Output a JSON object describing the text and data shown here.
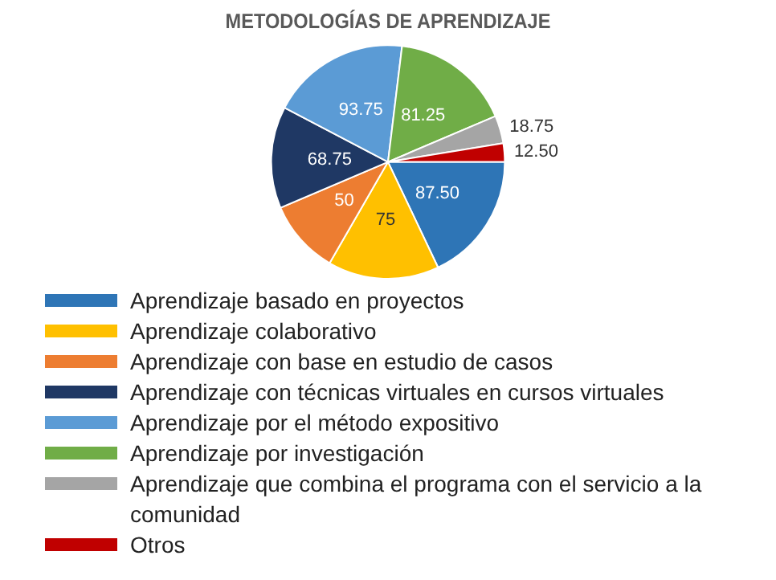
{
  "chart_data": {
    "type": "pie",
    "title": "METODOLOGÍAS DE APRENDIZAJE",
    "categories": [
      "Aprendizaje basado en proyectos",
      "Aprendizaje colaborativo",
      "Aprendizaje con base en estudio de casos",
      "Aprendizaje con técnicas virtuales en cursos virtuales",
      "Aprendizaje por el método expositivo",
      "Aprendizaje por investigación",
      "Aprendizaje que combina el programa con el servicio a la comunidad",
      "Otros"
    ],
    "values": [
      87.5,
      75,
      50,
      68.75,
      93.75,
      81.25,
      18.75,
      12.5
    ],
    "value_labels": [
      "87.50",
      "75",
      "50",
      "68.75",
      "93.75",
      "81.25",
      "18.75",
      "12.50"
    ],
    "colors": [
      "#2e75b6",
      "#ffc000",
      "#ed7d31",
      "#1f3864",
      "#5b9bd5",
      "#70ad47",
      "#a5a5a5",
      "#c00000"
    ],
    "legend": "bottom"
  }
}
